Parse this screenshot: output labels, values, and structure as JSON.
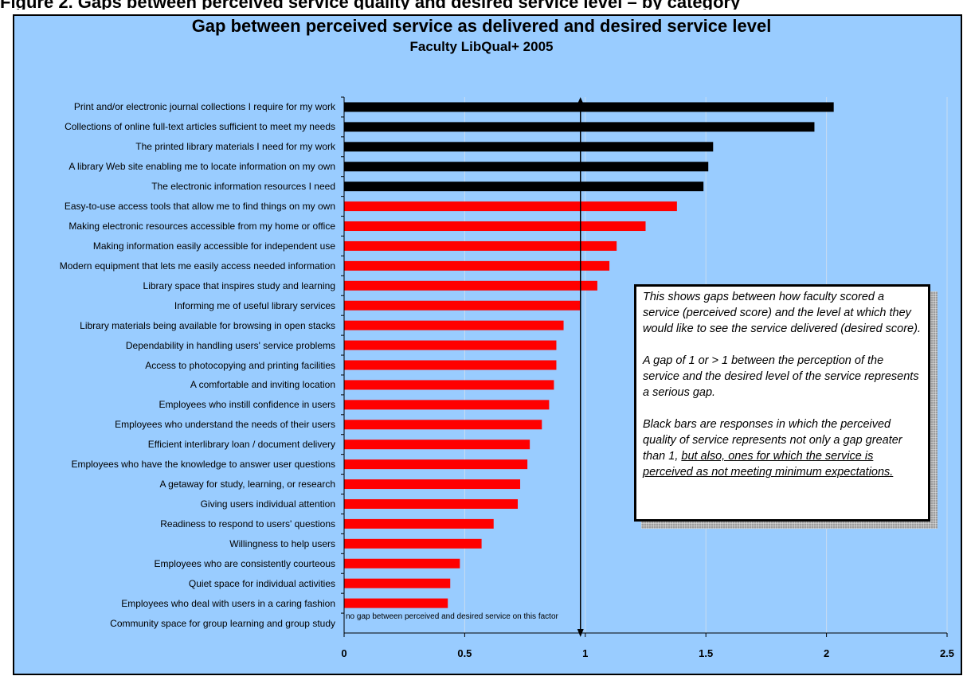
{
  "header_strip": "Figure 2. Gaps between perceived service quality and desired service level – by category",
  "chart_data": {
    "type": "bar",
    "orientation": "horizontal",
    "title": "Gap between perceived service as delivered and desired service level",
    "subtitle": "Faculty LibQual+ 2005",
    "categories": [
      "Print and/or electronic journal collections I require for my work",
      "Collections of online full-text articles sufficient to meet my needs",
      "The printed library materials I need for my work",
      "A library Web site enabling me to locate information on my own",
      "The electronic information resources I need",
      "Easy-to-use access tools that allow me to find things on my own",
      "Making electronic resources accessible from my home or office",
      "Making information easily accessible for independent use",
      "Modern equipment that lets me easily access needed information",
      "Library space that inspires study and learning",
      "Informing me of useful library services",
      "Library materials being available for browsing in open stacks",
      "Dependability in handling users' service problems",
      "Access to photocopying and printing facilities",
      "A comfortable and inviting location",
      "Employees who instill confidence in users",
      "Employees who understand the needs of their users",
      "Efficient interlibrary loan / document delivery",
      "Employees who have the knowledge to answer user questions",
      "A getaway for study, learning, or research",
      "Giving users individual attention",
      "Readiness to respond to users' questions",
      "Willingness to help users",
      "Employees who are consistently courteous",
      "Quiet space for individual activities",
      "Employees who deal with users in a caring fashion",
      "Community space for group learning and group study"
    ],
    "values": [
      2.03,
      1.95,
      1.53,
      1.51,
      1.49,
      1.38,
      1.25,
      1.13,
      1.1,
      1.05,
      0.98,
      0.91,
      0.88,
      0.88,
      0.87,
      0.85,
      0.82,
      0.77,
      0.76,
      0.73,
      0.72,
      0.62,
      0.57,
      0.48,
      0.44,
      0.43,
      0
    ],
    "bar_colors": [
      "black",
      "black",
      "black",
      "black",
      "black",
      "red",
      "red",
      "red",
      "red",
      "red",
      "red",
      "red",
      "red",
      "red",
      "red",
      "red",
      "red",
      "red",
      "red",
      "red",
      "red",
      "red",
      "red",
      "red",
      "red",
      "red",
      "red"
    ],
    "xlim": [
      0,
      2.5
    ],
    "xticks": [
      "0",
      "0.5",
      "1",
      "1.5",
      "2",
      "2.5"
    ],
    "reference_line_x": 0.98,
    "grid": "vertical",
    "annotation": "no gap between perceived and desired service on this factor",
    "note": {
      "para1": "This shows gaps between how faculty scored a service (perceived score) and the level at which they would like to see the service delivered (desired score).",
      "para2": "A  gap of 1 or > 1 between the  perception of the service and the desired level of the service represents a serious gap.",
      "para3_plain": "Black bars are responses in which the perceived quality of service represents not only a gap greater than 1, ",
      "para3_underlined": "but also, ones for which the service is perceived as not meeting minimum expectations."
    }
  },
  "colors": {
    "background": "#99ccff",
    "black_bar": "#000000",
    "red_bar": "#ff0000",
    "grid": "#c8dcf0"
  }
}
